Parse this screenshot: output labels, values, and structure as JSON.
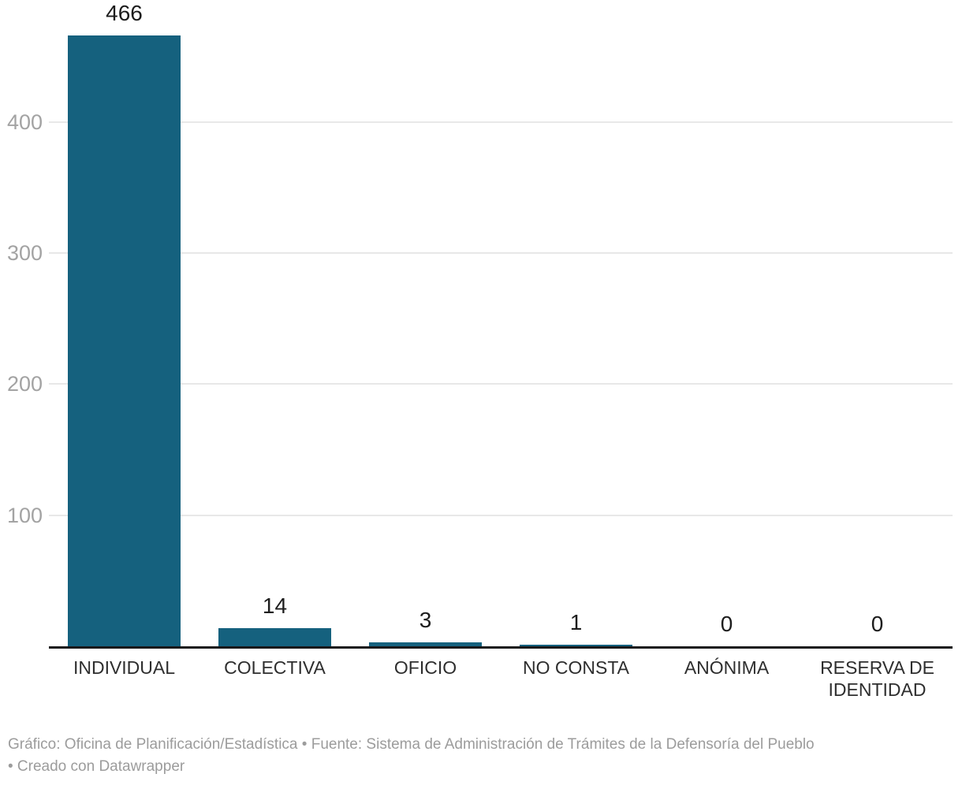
{
  "chart_data": {
    "type": "bar",
    "title": "",
    "xlabel": "",
    "ylabel": "",
    "categories": [
      "INDIVIDUAL",
      "COLECTIVA",
      "OFICIO",
      "NO CONSTA",
      "ANÓNIMA",
      "RESERVA DE IDENTIDAD"
    ],
    "values": [
      466,
      14,
      3,
      1,
      0,
      0
    ],
    "yticks": [
      100,
      200,
      300,
      400
    ],
    "ylim": [
      0,
      466
    ],
    "grid": "horizontal",
    "legend": "none",
    "bar_color": "#15617e"
  },
  "footer": {
    "line1": "Gráfico: Oficina de Planificación/Estadística  • Fuente: Sistema de Administración de Trámites de la Defensoría del Pueblo",
    "line2": " • Creado con Datawrapper"
  },
  "colors": {
    "bar": "#15617e",
    "gridline": "#e8e8e8",
    "axis_line": "#18181a",
    "ytick_label": "#a3a3a3",
    "category_label": "#2e2e2e",
    "value_label": "#1d1d1d",
    "footer_text": "#9c9c9c",
    "background": "#ffffff"
  }
}
